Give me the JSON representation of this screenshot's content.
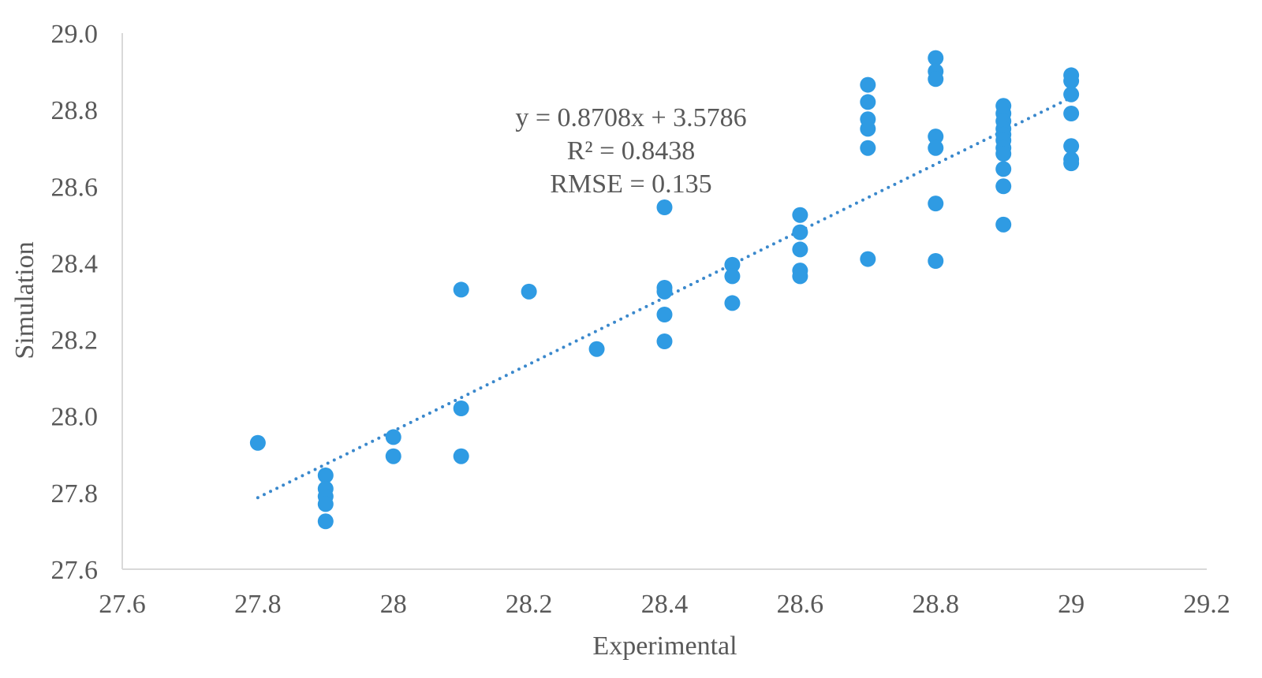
{
  "chart_data": {
    "type": "scatter",
    "xlabel": "Experimental",
    "ylabel": "Simulation",
    "xlim": [
      27.6,
      29.2
    ],
    "ylim": [
      27.6,
      29.0
    ],
    "x_ticks": [
      27.6,
      27.8,
      28,
      28.2,
      28.4,
      28.6,
      28.8,
      29,
      29.2
    ],
    "x_tick_labels": [
      "27.6",
      "27.8",
      "28",
      "28.2",
      "28.4",
      "28.6",
      "28.8",
      "29",
      "29.2"
    ],
    "y_ticks": [
      27.6,
      27.8,
      28.0,
      28.2,
      28.4,
      28.6,
      28.8,
      29.0
    ],
    "y_tick_labels": [
      "27.6",
      "27.8",
      "28.0",
      "28.2",
      "28.4",
      "28.6",
      "28.8",
      "29.0"
    ],
    "grid": false,
    "marker_color": "#2f9be3",
    "trendline_color": "#3a88cc",
    "axis_color": "#d9d9d9",
    "trendline": {
      "slope": 0.8708,
      "intercept": 3.5786,
      "x_range": [
        27.8,
        29.0
      ],
      "style": "dotted"
    },
    "annotations": [
      "y = 0.8708x + 3.5786",
      "R² = 0.8438",
      "RMSE = 0.135"
    ],
    "points": [
      [
        27.8,
        27.93
      ],
      [
        27.9,
        27.845
      ],
      [
        27.9,
        27.81
      ],
      [
        27.9,
        27.79
      ],
      [
        27.9,
        27.77
      ],
      [
        27.9,
        27.725
      ],
      [
        28.0,
        27.945
      ],
      [
        28.0,
        27.895
      ],
      [
        28.1,
        28.33
      ],
      [
        28.1,
        28.02
      ],
      [
        28.1,
        27.895
      ],
      [
        28.2,
        28.325
      ],
      [
        28.3,
        28.175
      ],
      [
        28.4,
        28.545
      ],
      [
        28.4,
        28.335
      ],
      [
        28.4,
        28.325
      ],
      [
        28.4,
        28.265
      ],
      [
        28.4,
        28.195
      ],
      [
        28.5,
        28.395
      ],
      [
        28.5,
        28.365
      ],
      [
        28.5,
        28.295
      ],
      [
        28.6,
        28.525
      ],
      [
        28.6,
        28.48
      ],
      [
        28.6,
        28.435
      ],
      [
        28.6,
        28.38
      ],
      [
        28.6,
        28.365
      ],
      [
        28.7,
        28.865
      ],
      [
        28.7,
        28.82
      ],
      [
        28.7,
        28.775
      ],
      [
        28.7,
        28.75
      ],
      [
        28.7,
        28.7
      ],
      [
        28.7,
        28.41
      ],
      [
        28.8,
        28.935
      ],
      [
        28.8,
        28.9
      ],
      [
        28.8,
        28.88
      ],
      [
        28.8,
        28.73
      ],
      [
        28.8,
        28.7
      ],
      [
        28.8,
        28.555
      ],
      [
        28.8,
        28.405
      ],
      [
        28.9,
        28.81
      ],
      [
        28.9,
        28.79
      ],
      [
        28.9,
        28.77
      ],
      [
        28.9,
        28.75
      ],
      [
        28.9,
        28.735
      ],
      [
        28.9,
        28.72
      ],
      [
        28.9,
        28.7
      ],
      [
        28.9,
        28.685
      ],
      [
        28.9,
        28.645
      ],
      [
        28.9,
        28.6
      ],
      [
        28.9,
        28.5
      ],
      [
        29.0,
        28.89
      ],
      [
        29.0,
        28.875
      ],
      [
        29.0,
        28.84
      ],
      [
        29.0,
        28.79
      ],
      [
        29.0,
        28.705
      ],
      [
        29.0,
        28.67
      ],
      [
        29.0,
        28.66
      ]
    ]
  }
}
